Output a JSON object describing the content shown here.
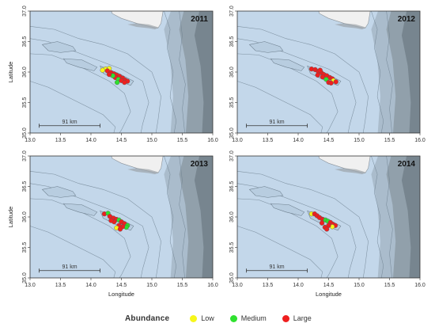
{
  "figure": {
    "xlabel": "Longitude",
    "ylabel": "Latitude",
    "xticks": [
      "13.0",
      "13.5",
      "14.0",
      "14.5",
      "15.0",
      "15.5",
      "16.0"
    ],
    "yticks": [
      "35.0",
      "35.5",
      "36.0",
      "36.5",
      "37.0"
    ],
    "xlim": [
      13.0,
      16.0
    ],
    "ylim": [
      35.0,
      37.0
    ],
    "scale_bar_label": "91 km",
    "background_color": "#c3d7ea",
    "land_color": "#f0f0f0",
    "deep_water_color": "#77858f"
  },
  "panels": [
    {
      "year": "2011",
      "points": [
        {
          "lon": 14.24,
          "lat": 36.05,
          "abundance": "low"
        },
        {
          "lon": 14.3,
          "lat": 36.06,
          "abundance": "low"
        },
        {
          "lon": 14.19,
          "lat": 36.03,
          "abundance": "low"
        },
        {
          "lon": 14.27,
          "lat": 36.02,
          "abundance": "large"
        },
        {
          "lon": 14.33,
          "lat": 35.99,
          "abundance": "large"
        },
        {
          "lon": 14.38,
          "lat": 35.97,
          "abundance": "large"
        },
        {
          "lon": 14.42,
          "lat": 35.95,
          "abundance": "large"
        },
        {
          "lon": 14.47,
          "lat": 35.93,
          "abundance": "large"
        },
        {
          "lon": 14.52,
          "lat": 35.9,
          "abundance": "large"
        },
        {
          "lon": 14.56,
          "lat": 35.87,
          "abundance": "large"
        },
        {
          "lon": 14.6,
          "lat": 35.85,
          "abundance": "large"
        },
        {
          "lon": 14.4,
          "lat": 35.91,
          "abundance": "large"
        },
        {
          "lon": 14.45,
          "lat": 35.88,
          "abundance": "medium"
        },
        {
          "lon": 14.5,
          "lat": 35.86,
          "abundance": "large"
        },
        {
          "lon": 14.36,
          "lat": 35.94,
          "abundance": "medium"
        },
        {
          "lon": 14.43,
          "lat": 35.83,
          "abundance": "medium"
        },
        {
          "lon": 14.55,
          "lat": 35.83,
          "abundance": "large"
        },
        {
          "lon": 14.3,
          "lat": 35.96,
          "abundance": "large"
        }
      ]
    },
    {
      "year": "2012",
      "points": [
        {
          "lon": 14.22,
          "lat": 36.05,
          "abundance": "large"
        },
        {
          "lon": 14.28,
          "lat": 36.04,
          "abundance": "large"
        },
        {
          "lon": 14.33,
          "lat": 36.01,
          "abundance": "large"
        },
        {
          "lon": 14.38,
          "lat": 35.99,
          "abundance": "large"
        },
        {
          "lon": 14.36,
          "lat": 36.03,
          "abundance": "large"
        },
        {
          "lon": 14.42,
          "lat": 35.96,
          "abundance": "large"
        },
        {
          "lon": 14.47,
          "lat": 35.94,
          "abundance": "large"
        },
        {
          "lon": 14.52,
          "lat": 35.91,
          "abundance": "large"
        },
        {
          "lon": 14.56,
          "lat": 35.89,
          "abundance": "large"
        },
        {
          "lon": 14.58,
          "lat": 35.86,
          "abundance": "low"
        },
        {
          "lon": 14.62,
          "lat": 35.84,
          "abundance": "large"
        },
        {
          "lon": 14.46,
          "lat": 35.88,
          "abundance": "medium"
        },
        {
          "lon": 14.4,
          "lat": 35.92,
          "abundance": "large"
        },
        {
          "lon": 14.5,
          "lat": 35.83,
          "abundance": "large"
        },
        {
          "lon": 14.54,
          "lat": 35.82,
          "abundance": "large"
        },
        {
          "lon": 14.32,
          "lat": 35.95,
          "abundance": "large"
        }
      ]
    },
    {
      "year": "2013",
      "points": [
        {
          "lon": 14.22,
          "lat": 36.05,
          "abundance": "large"
        },
        {
          "lon": 14.28,
          "lat": 36.06,
          "abundance": "medium"
        },
        {
          "lon": 14.31,
          "lat": 36.01,
          "abundance": "large"
        },
        {
          "lon": 14.37,
          "lat": 35.98,
          "abundance": "large"
        },
        {
          "lon": 14.42,
          "lat": 35.96,
          "abundance": "large"
        },
        {
          "lon": 14.46,
          "lat": 35.95,
          "abundance": "medium"
        },
        {
          "lon": 14.5,
          "lat": 35.92,
          "abundance": "large"
        },
        {
          "lon": 14.55,
          "lat": 35.89,
          "abundance": "large"
        },
        {
          "lon": 14.6,
          "lat": 35.86,
          "abundance": "medium"
        },
        {
          "lon": 14.58,
          "lat": 35.83,
          "abundance": "medium"
        },
        {
          "lon": 14.52,
          "lat": 35.84,
          "abundance": "large"
        },
        {
          "lon": 14.46,
          "lat": 35.86,
          "abundance": "large"
        },
        {
          "lon": 14.42,
          "lat": 35.82,
          "abundance": "low"
        },
        {
          "lon": 14.48,
          "lat": 35.8,
          "abundance": "large"
        },
        {
          "lon": 14.38,
          "lat": 35.92,
          "abundance": "large"
        },
        {
          "lon": 14.33,
          "lat": 35.94,
          "abundance": "large"
        }
      ]
    },
    {
      "year": "2014",
      "points": [
        {
          "lon": 14.22,
          "lat": 36.05,
          "abundance": "low"
        },
        {
          "lon": 14.27,
          "lat": 36.05,
          "abundance": "large"
        },
        {
          "lon": 14.31,
          "lat": 36.02,
          "abundance": "large"
        },
        {
          "lon": 14.35,
          "lat": 35.99,
          "abundance": "large"
        },
        {
          "lon": 14.4,
          "lat": 35.96,
          "abundance": "large"
        },
        {
          "lon": 14.45,
          "lat": 35.95,
          "abundance": "medium"
        },
        {
          "lon": 14.49,
          "lat": 35.93,
          "abundance": "medium"
        },
        {
          "lon": 14.53,
          "lat": 35.91,
          "abundance": "large"
        },
        {
          "lon": 14.57,
          "lat": 35.88,
          "abundance": "large"
        },
        {
          "lon": 14.61,
          "lat": 35.86,
          "abundance": "large"
        },
        {
          "lon": 14.56,
          "lat": 35.84,
          "abundance": "low"
        },
        {
          "lon": 14.5,
          "lat": 35.86,
          "abundance": "large"
        },
        {
          "lon": 14.44,
          "lat": 35.83,
          "abundance": "large"
        },
        {
          "lon": 14.39,
          "lat": 35.9,
          "abundance": "large"
        },
        {
          "lon": 14.47,
          "lat": 35.8,
          "abundance": "large"
        }
      ]
    }
  ],
  "legend": {
    "title": "Abundance",
    "items": [
      {
        "key": "low",
        "label": "Low",
        "color": "#f7f71a"
      },
      {
        "key": "medium",
        "label": "Medium",
        "color": "#2fe12f"
      },
      {
        "key": "large",
        "label": "Large",
        "color": "#ef1f1f"
      }
    ]
  }
}
